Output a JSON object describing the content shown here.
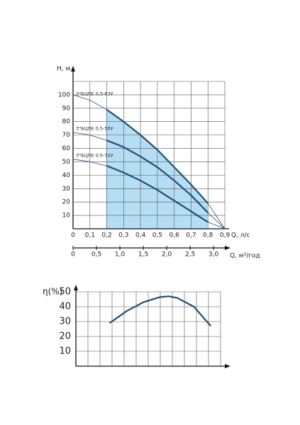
{
  "chart_data": [
    {
      "type": "line",
      "xlabel": "Q, л/с",
      "ylabel": "H, м",
      "x2label": "Q, м³/год",
      "x": [
        0,
        0.1,
        0.2,
        0.3,
        0.4,
        0.5,
        0.6,
        0.7,
        0.8,
        0.9
      ],
      "series": [
        {
          "name": "3\"БЦПЕ 0,5-63У",
          "color": "#1d4f78",
          "values": [
            100,
            96,
            89,
            80,
            70,
            59,
            46,
            33,
            19,
            0
          ]
        },
        {
          "name": "3\"БЦПЕ 0,5-50У",
          "color": "#1d4f78",
          "values": [
            72,
            70,
            66,
            61,
            54,
            46,
            36,
            25,
            12,
            0
          ]
        },
        {
          "name": "3\"БЦПЕ 0,5-32У",
          "color": "#1d4f78",
          "values": [
            52,
            50,
            47,
            42,
            36,
            29,
            21,
            13,
            5,
            0
          ]
        }
      ],
      "work_range": [
        0.2,
        0.8
      ],
      "shade_color": "#b5def4",
      "xlim": [
        0,
        0.9
      ],
      "ylim": [
        0,
        110
      ],
      "x2lim": [
        0,
        3.24
      ],
      "xticks": [
        0,
        {
          "value": 0.1,
          "label": "0,1"
        },
        {
          "value": 0.2,
          "label": "0,2"
        },
        {
          "value": 0.3,
          "label": "0,3"
        },
        {
          "value": 0.4,
          "label": "0,4"
        },
        {
          "value": 0.5,
          "label": "0,5"
        },
        {
          "value": 0.6,
          "label": "0,6"
        },
        {
          "value": 0.7,
          "label": "0,7"
        },
        {
          "value": 0.8,
          "label": "0,8"
        },
        {
          "value": 0.9,
          "label": "0,9"
        }
      ],
      "x2ticks": [
        0,
        {
          "value": 0.5,
          "label": "0,5"
        },
        {
          "value": 1,
          "label": "1,0"
        },
        {
          "value": 1.5,
          "label": "1,5"
        },
        {
          "value": 2,
          "label": "2,0"
        },
        {
          "value": 2.5,
          "label": "2,5"
        },
        {
          "value": 3,
          "label": "3,0"
        }
      ],
      "yticks": [
        10,
        20,
        30,
        40,
        50,
        60,
        70,
        80,
        90,
        100
      ],
      "grid": true
    },
    {
      "type": "line",
      "ylabel": "η(%)",
      "x": [
        0.2,
        0.3,
        0.4,
        0.5,
        0.55,
        0.6,
        0.7,
        0.8
      ],
      "values": [
        29,
        37,
        43,
        46.5,
        47,
        46,
        40,
        27
      ],
      "color": "#1d4f78",
      "xlim": [
        0,
        0.9
      ],
      "ylim": [
        0,
        50
      ],
      "yticks": [
        10,
        20,
        30,
        40,
        50
      ],
      "grid": true
    }
  ]
}
